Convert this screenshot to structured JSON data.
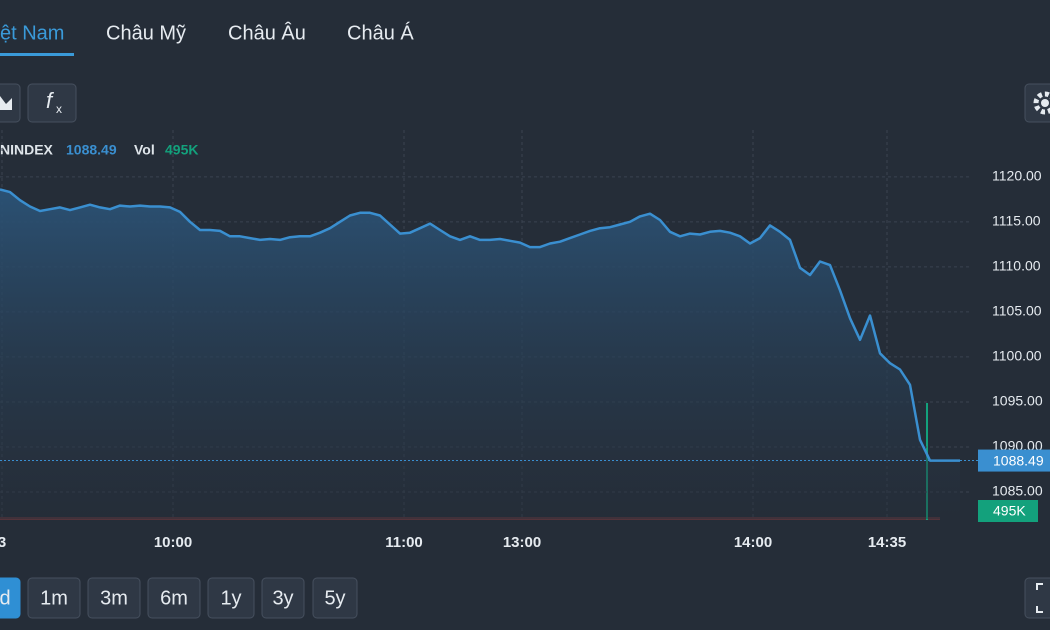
{
  "tabs": [
    "ệt Nam",
    "Châu Mỹ",
    "Châu Âu",
    "Châu Á"
  ],
  "legend": {
    "symbol": "NINDEX",
    "price": "1088.49",
    "vol_label": "Vol",
    "vol": "495K"
  },
  "ranges": [
    "d",
    "1m",
    "3m",
    "6m",
    "1y",
    "3y",
    "5y"
  ],
  "chart_data": {
    "type": "line",
    "color": "#3a8fd0",
    "values": [
      1118.6,
      1118.3,
      1117.4,
      1116.7,
      1116.2,
      1116.4,
      1116.6,
      1116.3,
      1116.6,
      1116.9,
      1116.6,
      1116.4,
      1116.8,
      1116.7,
      1116.8,
      1116.7,
      1116.7,
      1116.6,
      1116.1,
      1115.0,
      1114.1,
      1114.1,
      1114.0,
      1113.4,
      1113.4,
      1113.2,
      1113.0,
      1113.1,
      1113.0,
      1113.3,
      1113.4,
      1113.4,
      1113.8,
      1114.3,
      1115.0,
      1115.7,
      1116.0,
      1116.0,
      1115.7,
      1114.7,
      1113.7,
      1113.8,
      1114.3,
      1114.8,
      1114.1,
      1113.4,
      1113.0,
      1113.4,
      1113.0,
      1113.0,
      1113.1,
      1112.9,
      1112.7,
      1112.2,
      1112.2,
      1112.6,
      1112.8,
      1113.2,
      1113.6,
      1114.0,
      1114.3,
      1114.4,
      1114.7,
      1115.0,
      1115.6,
      1115.9,
      1115.2,
      1113.9,
      1113.4,
      1113.7,
      1113.6,
      1113.9,
      1114.0,
      1113.8,
      1113.4,
      1112.6,
      1113.2,
      1114.6,
      1113.9,
      1113.0,
      1109.9,
      1109.1,
      1110.6,
      1110.2,
      1107.4,
      1104.3,
      1101.9,
      1104.6,
      1100.4,
      1099.3,
      1098.6,
      1096.9,
      1090.8,
      1088.49,
      1088.49,
      1088.49,
      1088.49
    ],
    "xlim": [
      0,
      97
    ],
    "xticks": [
      {
        "value": 0.2,
        "label": "3"
      },
      {
        "value": 17.3,
        "label": "10:00"
      },
      {
        "value": 40.4,
        "label": "11:00"
      },
      {
        "value": 52.2,
        "label": "13:00"
      },
      {
        "value": 75.3,
        "label": "14:00"
      },
      {
        "value": 88.7,
        "label": "14:35"
      }
    ],
    "ylim": [
      1082,
      1125.2
    ],
    "yticks": [
      {
        "value": 1085,
        "label": "1085.00"
      },
      {
        "value": 1090,
        "label": "1090.00"
      },
      {
        "value": 1095,
        "label": "1095.00"
      },
      {
        "value": 1100,
        "label": "1100.00"
      },
      {
        "value": 1105,
        "label": "1105.00"
      },
      {
        "value": 1110,
        "label": "1110.00"
      },
      {
        "value": 1115,
        "label": "1115.00"
      },
      {
        "value": 1120,
        "label": "1120.00"
      }
    ],
    "grid": true,
    "price_label": "1088.49",
    "volume_label": "495K"
  }
}
